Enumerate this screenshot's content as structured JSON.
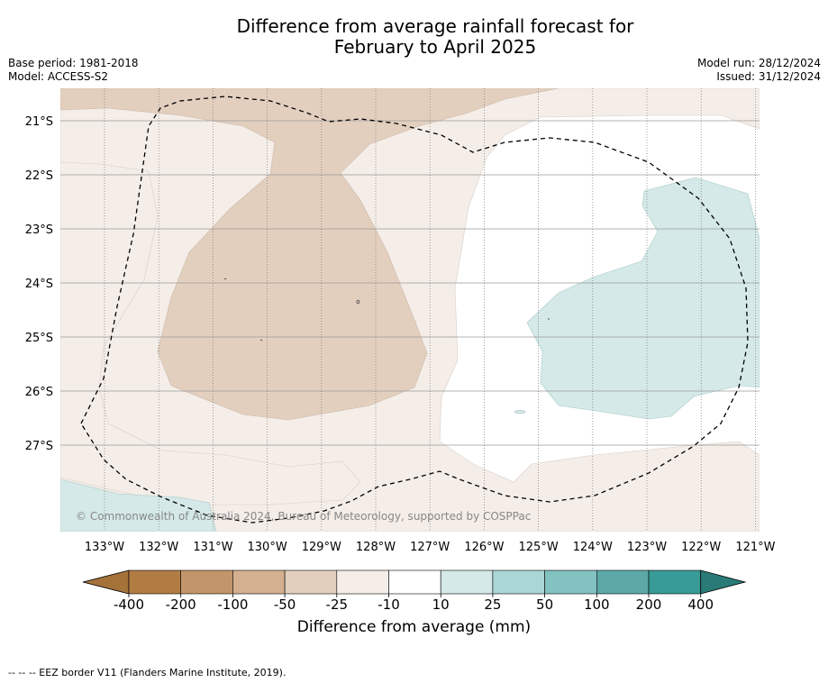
{
  "header": {
    "title_line1": "Difference from average rainfall forecast for",
    "title_line2": "February to April 2025",
    "base_period": "Base period: 1981-2018",
    "model": "Model: ACCESS-S2",
    "model_run": "Model run: 28/12/2024",
    "issued": "Issued: 31/12/2024"
  },
  "map": {
    "lat_labels": [
      "21°S",
      "22°S",
      "23°S",
      "24°S",
      "25°S",
      "26°S",
      "27°S"
    ],
    "lon_labels": [
      "133°W",
      "132°W",
      "131°W",
      "130°W",
      "129°W",
      "128°W",
      "127°W",
      "126°W",
      "125°W",
      "124°W",
      "123°W",
      "122°W",
      "121°W"
    ],
    "copyright": "© Commonwealth of Australia 2024, Bureau of Meteorology, supported by COSPPac"
  },
  "colorbar": {
    "ticks": [
      "-400",
      "-200",
      "-100",
      "-50",
      "-25",
      "-10",
      "10",
      "25",
      "50",
      "100",
      "200",
      "400"
    ],
    "colors": [
      "#a5723a",
      "#b17c44",
      "#c2956a",
      "#d4b08f",
      "#e3cfbe",
      "#f4ede8",
      "#ffffff",
      "#d4e9e8",
      "#aad6d5",
      "#82c2c1",
      "#5ca9a8",
      "#389b98",
      "#2a7a78"
    ],
    "label": "Difference from average (mm)"
  },
  "footer": {
    "legend_text": "--  --  -- EEZ border V11 (Flanders Marine Institute, 2019)."
  }
}
